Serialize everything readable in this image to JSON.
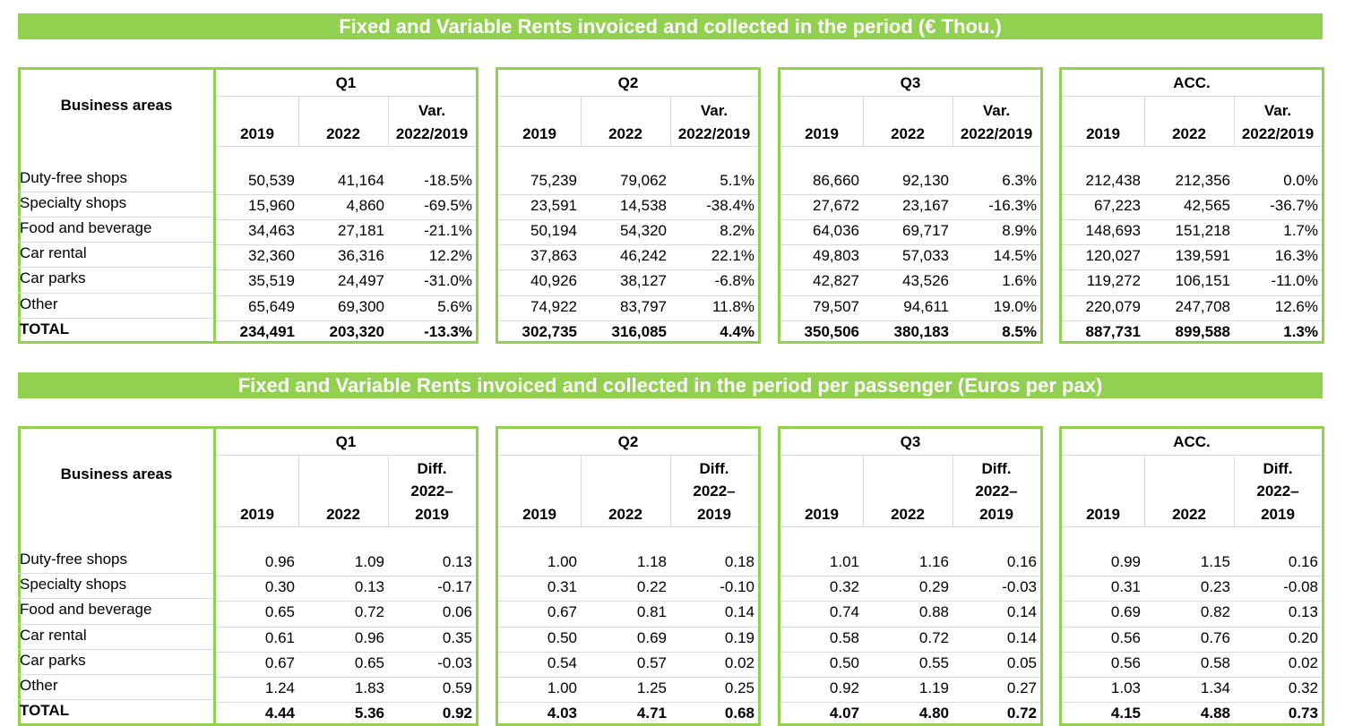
{
  "tables": [
    {
      "title": "Fixed and Variable Rents invoiced and collected in the period (€ Thou.)",
      "row_header": "Business areas",
      "col_year_a": "2019",
      "col_year_b": "2022",
      "col_var_line1": "Var.",
      "col_var_line2": "2022/2019",
      "col_var_line3": "",
      "rows": [
        "Duty-free shops",
        "Specialty shops",
        "Food and beverage",
        "Car rental",
        "Car parks",
        "Other",
        "TOTAL"
      ],
      "quarters": [
        {
          "name": "Q1",
          "values": [
            [
              "50,539",
              "41,164",
              "-18.5%"
            ],
            [
              "15,960",
              "4,860",
              "-69.5%"
            ],
            [
              "34,463",
              "27,181",
              "-21.1%"
            ],
            [
              "32,360",
              "36,316",
              "12.2%"
            ],
            [
              "35,519",
              "24,497",
              "-31.0%"
            ],
            [
              "65,649",
              "69,300",
              "5.6%"
            ],
            [
              "234,491",
              "203,320",
              "-13.3%"
            ]
          ]
        },
        {
          "name": "Q2",
          "values": [
            [
              "75,239",
              "79,062",
              "5.1%"
            ],
            [
              "23,591",
              "14,538",
              "-38.4%"
            ],
            [
              "50,194",
              "54,320",
              "8.2%"
            ],
            [
              "37,863",
              "46,242",
              "22.1%"
            ],
            [
              "40,926",
              "38,127",
              "-6.8%"
            ],
            [
              "74,922",
              "83,797",
              "11.8%"
            ],
            [
              "302,735",
              "316,085",
              "4.4%"
            ]
          ]
        },
        {
          "name": "Q3",
          "values": [
            [
              "86,660",
              "92,130",
              "6.3%"
            ],
            [
              "27,672",
              "23,167",
              "-16.3%"
            ],
            [
              "64,036",
              "69,717",
              "8.9%"
            ],
            [
              "49,803",
              "57,033",
              "14.5%"
            ],
            [
              "42,827",
              "43,526",
              "1.6%"
            ],
            [
              "79,507",
              "94,611",
              "19.0%"
            ],
            [
              "350,506",
              "380,183",
              "8.5%"
            ]
          ]
        },
        {
          "name": "ACC.",
          "values": [
            [
              "212,438",
              "212,356",
              "0.0%"
            ],
            [
              "67,223",
              "42,565",
              "-36.7%"
            ],
            [
              "148,693",
              "151,218",
              "1.7%"
            ],
            [
              "120,027",
              "139,591",
              "16.3%"
            ],
            [
              "119,272",
              "106,151",
              "-11.0%"
            ],
            [
              "220,079",
              "247,708",
              "12.6%"
            ],
            [
              "887,731",
              "899,588",
              "1.3%"
            ]
          ]
        }
      ]
    },
    {
      "title": "Fixed and Variable Rents invoiced and collected in the period per passenger (Euros per pax)",
      "row_header": "Business areas",
      "col_year_a": "2019",
      "col_year_b": "2022",
      "col_var_line1": "Diff.",
      "col_var_line2": "2022–",
      "col_var_line3": "2019",
      "rows": [
        "Duty-free shops",
        "Specialty shops",
        "Food and beverage",
        "Car rental",
        "Car parks",
        "Other",
        "TOTAL"
      ],
      "quarters": [
        {
          "name": "Q1",
          "values": [
            [
              "0.96",
              "1.09",
              "0.13"
            ],
            [
              "0.30",
              "0.13",
              "-0.17"
            ],
            [
              "0.65",
              "0.72",
              "0.06"
            ],
            [
              "0.61",
              "0.96",
              "0.35"
            ],
            [
              "0.67",
              "0.65",
              "-0.03"
            ],
            [
              "1.24",
              "1.83",
              "0.59"
            ],
            [
              "4.44",
              "5.36",
              "0.92"
            ]
          ]
        },
        {
          "name": "Q2",
          "values": [
            [
              "1.00",
              "1.18",
              "0.18"
            ],
            [
              "0.31",
              "0.22",
              "-0.10"
            ],
            [
              "0.67",
              "0.81",
              "0.14"
            ],
            [
              "0.50",
              "0.69",
              "0.19"
            ],
            [
              "0.54",
              "0.57",
              "0.02"
            ],
            [
              "1.00",
              "1.25",
              "0.25"
            ],
            [
              "4.03",
              "4.71",
              "0.68"
            ]
          ]
        },
        {
          "name": "Q3",
          "values": [
            [
              "1.01",
              "1.16",
              "0.16"
            ],
            [
              "0.32",
              "0.29",
              "-0.03"
            ],
            [
              "0.74",
              "0.88",
              "0.14"
            ],
            [
              "0.58",
              "0.72",
              "0.14"
            ],
            [
              "0.50",
              "0.55",
              "0.05"
            ],
            [
              "0.92",
              "1.19",
              "0.27"
            ],
            [
              "4.07",
              "4.80",
              "0.72"
            ]
          ]
        },
        {
          "name": "ACC.",
          "values": [
            [
              "0.99",
              "1.15",
              "0.16"
            ],
            [
              "0.31",
              "0.23",
              "-0.08"
            ],
            [
              "0.69",
              "0.82",
              "0.13"
            ],
            [
              "0.56",
              "0.76",
              "0.20"
            ],
            [
              "0.56",
              "0.58",
              "0.02"
            ],
            [
              "1.03",
              "1.34",
              "0.32"
            ],
            [
              "4.15",
              "4.88",
              "0.73"
            ]
          ]
        }
      ]
    }
  ]
}
